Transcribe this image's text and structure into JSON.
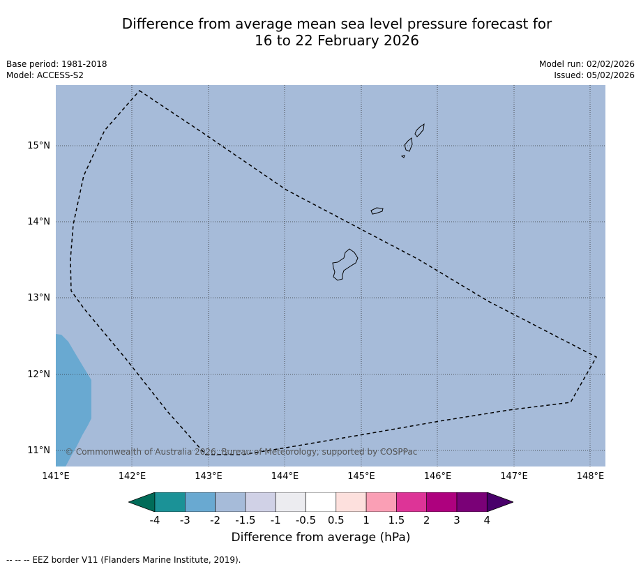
{
  "title_line1": "Difference from average mean sea level pressure forecast for",
  "title_line2": "16 to 22 February 2026",
  "meta": {
    "base_period": "Base period: 1981-2018",
    "model": "Model: ACCESS-S2",
    "model_run": "Model run: 02/02/2026",
    "issued": "Issued: 05/02/2026"
  },
  "map": {
    "background_color": "#a6bbd9",
    "low_pressure_color": "#69a9d1",
    "copyright": "© Commonwealth of Australia 2026, Bureau of Meteorology, supported by COSPPac",
    "lat_labels": [
      "15°N",
      "14°N",
      "13°N",
      "12°N",
      "11°N"
    ],
    "lon_labels": [
      "141°E",
      "142°E",
      "143°E",
      "144°E",
      "145°E",
      "146°E",
      "147°E",
      "148°E"
    ]
  },
  "colorbar": {
    "title": "Difference from average (hPa)",
    "ticks": [
      "-4",
      "-3",
      "-2",
      "-1.5",
      "-1",
      "-0.5",
      "0.5",
      "1",
      "1.5",
      "2",
      "3",
      "4"
    ],
    "colors": [
      "#1b9297",
      "#69a9d1",
      "#a6bbd9",
      "#d0d1e6",
      "#ececf0",
      "#ffffff",
      "#fde0dd",
      "#fa9fb5",
      "#dd3497",
      "#ae017e",
      "#7a0177"
    ],
    "extend_low_color": "#016c59",
    "extend_high_color": "#49006a"
  },
  "footnote": "--  --  -- EEZ border V11 (Flanders Marine Institute, 2019)."
}
